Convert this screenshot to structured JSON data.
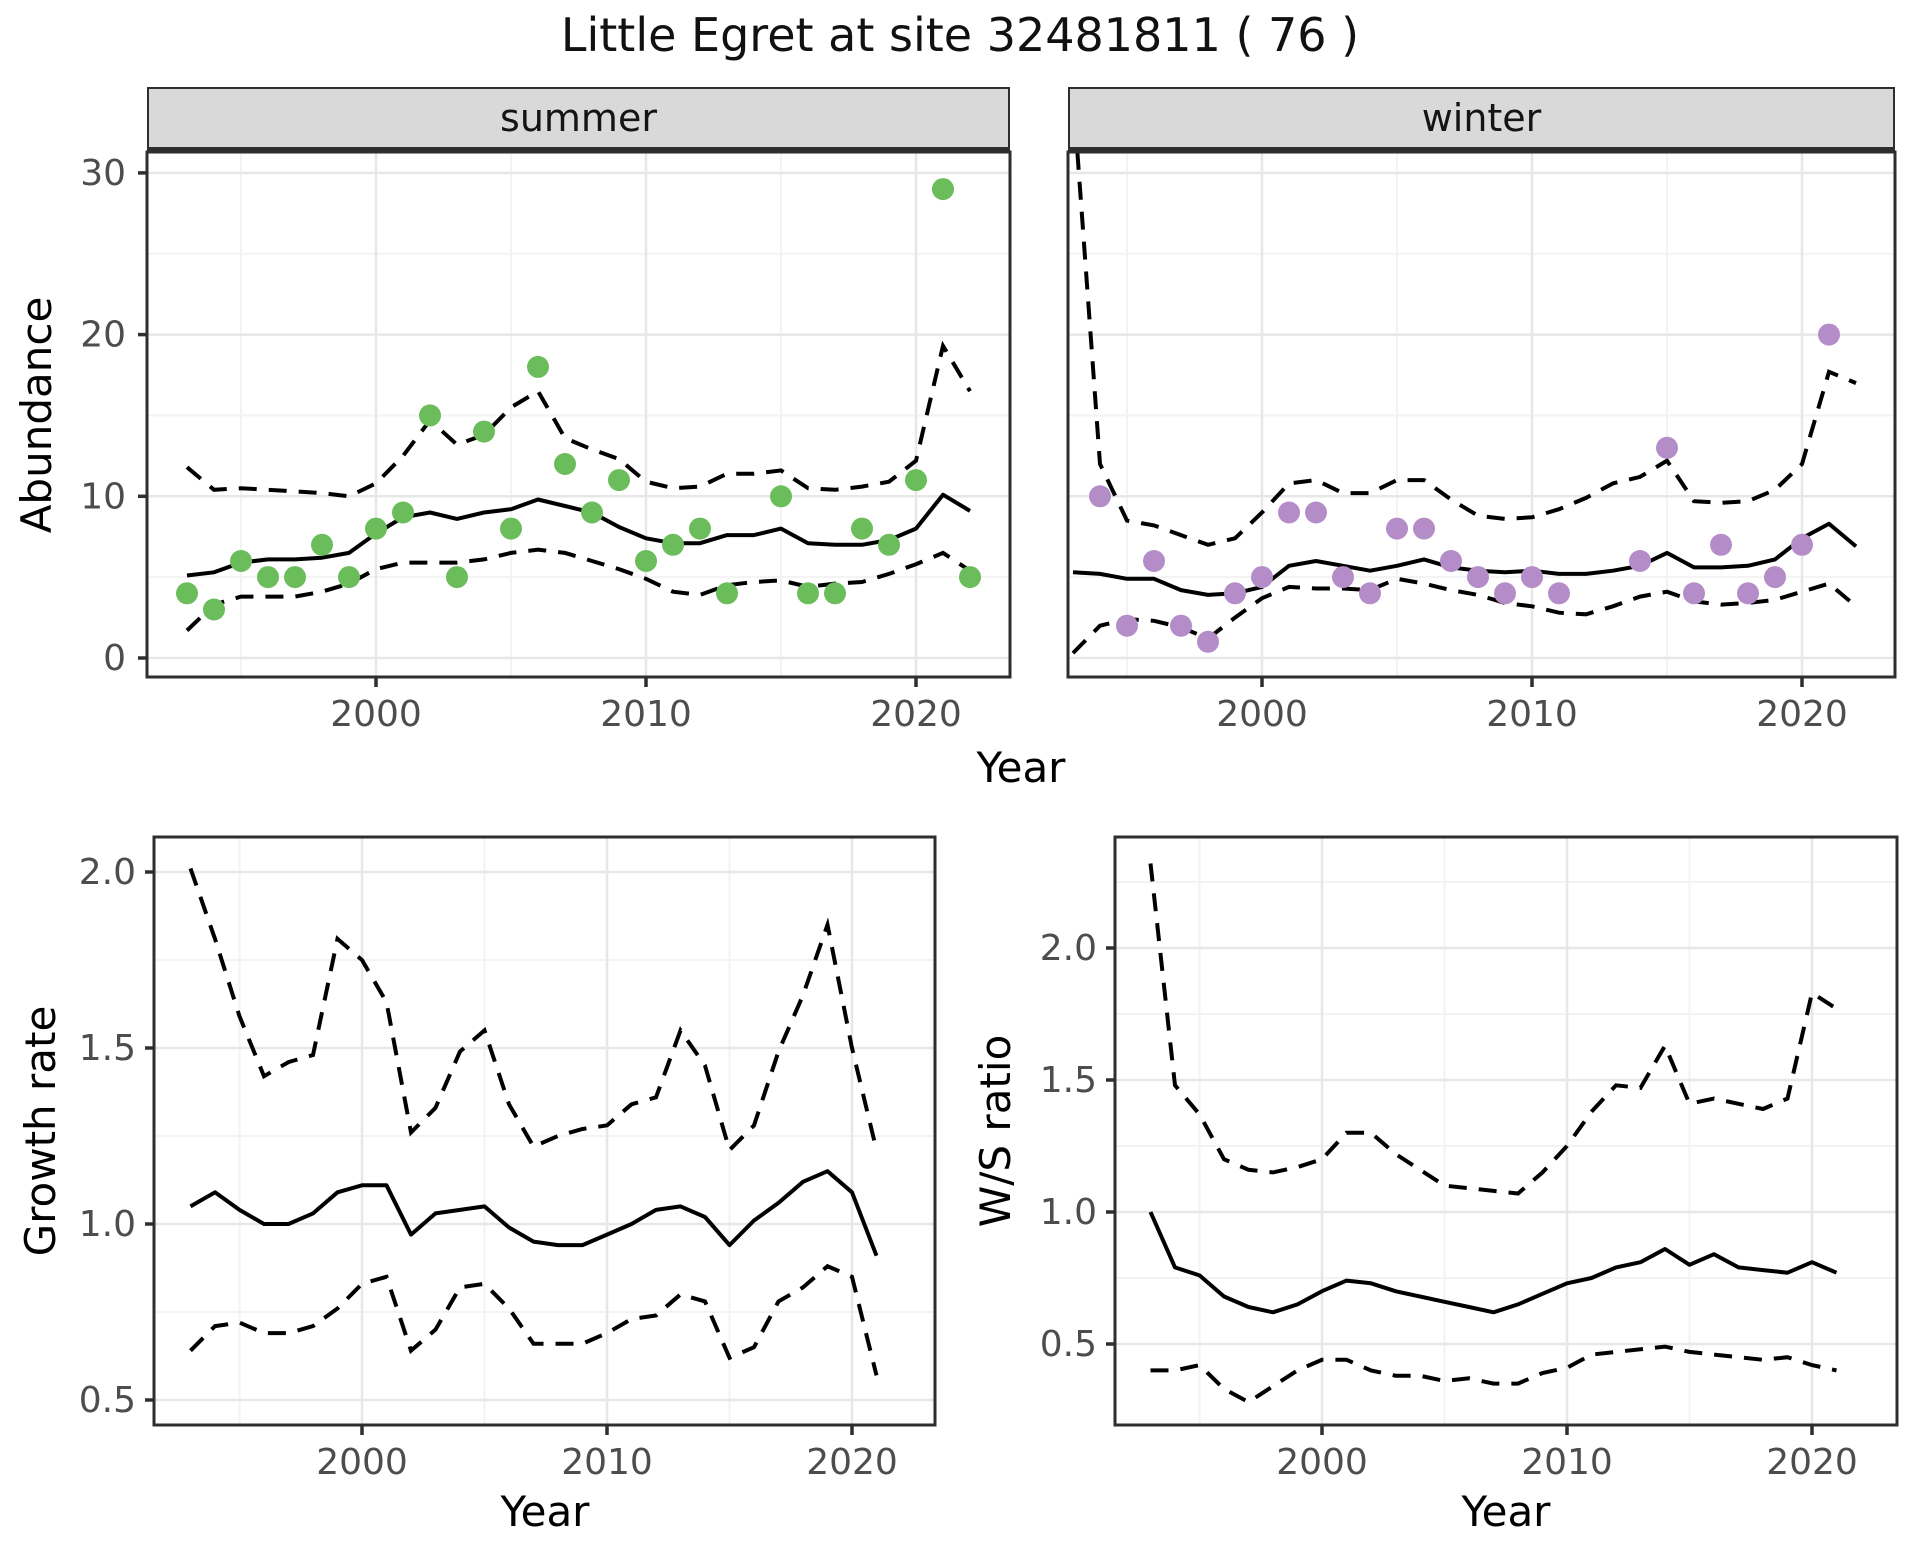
{
  "title": "Little Egret at site 32481811 ( 76 )",
  "facets": {
    "summer": "summer",
    "winter": "winter"
  },
  "axis_titles": {
    "x": "Year",
    "y_abundance": "Abundance",
    "y_growth": "Growth rate",
    "y_ws": "W/S ratio"
  },
  "colors": {
    "summer_point": "#6abd5a",
    "winter_point": "#b48cc8",
    "line": "#000000",
    "grid_major": "#e7e7e7",
    "grid_minor": "#f3f3f3",
    "strip_bg": "#d9d9d9",
    "panel_border": "#2e2e2e",
    "tick_text": "#4d4d4d"
  },
  "chart_data": [
    {
      "id": "abundance-summer",
      "type": "line+scatter",
      "facet_label": "summer",
      "xlabel": "Year",
      "ylabel": "Abundance",
      "xlim": [
        1991.5,
        2023.5
      ],
      "ylim": [
        -1.2,
        31.3
      ],
      "xticks": [
        2000,
        2010,
        2020
      ],
      "xtick_labels": [
        "2000",
        "2010",
        "2020"
      ],
      "xminor": [
        1995,
        2005,
        2015
      ],
      "yticks": [
        0,
        10,
        20,
        30
      ],
      "ytick_labels": [
        "0",
        "10",
        "20",
        "30"
      ],
      "yminor": [
        5,
        15,
        25
      ],
      "line_years_start": 1993,
      "series": [
        {
          "name": "mean",
          "style": "solid",
          "values": [
            5.1,
            5.3,
            5.9,
            6.1,
            6.1,
            6.2,
            6.5,
            7.7,
            8.7,
            9.0,
            8.6,
            9.0,
            9.2,
            9.8,
            9.4,
            9.0,
            8.1,
            7.4,
            7.1,
            7.1,
            7.6,
            7.6,
            8.0,
            7.1,
            7.0,
            7.0,
            7.3,
            8.0,
            10.1,
            9.1
          ]
        },
        {
          "name": "upper95",
          "style": "dashed",
          "values": [
            11.8,
            10.4,
            10.5,
            10.4,
            10.3,
            10.2,
            10.0,
            10.8,
            12.5,
            14.7,
            13.2,
            13.8,
            15.5,
            16.5,
            13.6,
            12.9,
            12.3,
            10.9,
            10.5,
            10.6,
            11.4,
            11.4,
            11.6,
            10.5,
            10.4,
            10.6,
            10.9,
            12.2,
            19.3,
            16.5
          ]
        },
        {
          "name": "lower95",
          "style": "dashed",
          "values": [
            1.7,
            3.3,
            3.8,
            3.8,
            3.8,
            4.1,
            4.6,
            5.5,
            5.9,
            5.9,
            5.9,
            6.1,
            6.5,
            6.7,
            6.5,
            6.0,
            5.5,
            4.9,
            4.1,
            3.9,
            4.5,
            4.7,
            4.8,
            4.4,
            4.6,
            4.7,
            5.2,
            5.8,
            6.5,
            5.4
          ]
        }
      ],
      "points": {
        "color_key": "summer_point",
        "x": [
          1993,
          1994,
          1995,
          1996,
          1997,
          1998,
          1999,
          2000,
          2001,
          2002,
          2003,
          2004,
          2005,
          2006,
          2007,
          2008,
          2009,
          2010,
          2011,
          2012,
          2013,
          2015,
          2016,
          2017,
          2018,
          2019,
          2020,
          2021,
          2022
        ],
        "y": [
          4,
          3,
          6,
          5,
          5,
          7,
          5,
          8,
          9,
          15,
          5,
          14,
          8,
          18,
          12,
          9,
          11,
          6,
          7,
          8,
          4,
          10,
          4,
          4,
          8,
          7,
          11,
          29,
          5
        ]
      }
    },
    {
      "id": "abundance-winter",
      "type": "line+scatter",
      "facet_label": "winter",
      "xlabel": "Year",
      "ylabel": "Abundance",
      "xlim": [
        1991.5,
        2023.5
      ],
      "ylim": [
        -1.2,
        31.3
      ],
      "xticks": [
        2000,
        2010,
        2020
      ],
      "xtick_labels": [
        "2000",
        "2010",
        "2020"
      ],
      "xminor": [
        1995,
        2005,
        2015
      ],
      "yticks": [
        0,
        10,
        20,
        30
      ],
      "ytick_labels": [
        "0",
        "10",
        "20",
        "30"
      ],
      "yminor": [
        5,
        15,
        25
      ],
      "line_years_start": 1993,
      "series": [
        {
          "name": "mean",
          "style": "solid",
          "values": [
            5.3,
            5.2,
            4.9,
            4.9,
            4.2,
            3.9,
            4.0,
            4.4,
            5.7,
            6.0,
            5.7,
            5.4,
            5.7,
            6.1,
            5.6,
            5.4,
            5.3,
            5.4,
            5.2,
            5.2,
            5.4,
            5.7,
            6.5,
            5.6,
            5.6,
            5.7,
            6.1,
            7.4,
            8.3,
            6.9
          ]
        },
        {
          "name": "upper95",
          "style": "dashed",
          "values": [
            35,
            12,
            8.5,
            8.2,
            7.6,
            7.0,
            7.4,
            9.0,
            10.8,
            11.0,
            10.2,
            10.2,
            11.0,
            11.0,
            9.8,
            8.8,
            8.6,
            8.7,
            9.2,
            9.9,
            10.8,
            11.2,
            12.2,
            9.7,
            9.6,
            9.7,
            10.4,
            12.0,
            17.7,
            17.0
          ]
        },
        {
          "name": "lower95",
          "style": "dashed",
          "values": [
            0.3,
            2.0,
            2.4,
            2.3,
            1.9,
            1.2,
            2.5,
            3.7,
            4.4,
            4.3,
            4.3,
            4.2,
            4.9,
            4.6,
            4.2,
            3.9,
            3.4,
            3.2,
            2.8,
            2.7,
            3.2,
            3.8,
            4.1,
            3.5,
            3.3,
            3.4,
            3.6,
            4.1,
            4.6,
            3.2
          ]
        }
      ],
      "points": {
        "color_key": "winter_point",
        "x": [
          1994,
          1995,
          1996,
          1997,
          1998,
          1999,
          2000,
          2001,
          2002,
          2003,
          2004,
          2005,
          2006,
          2007,
          2008,
          2009,
          2010,
          2011,
          2014,
          2015,
          2016,
          2017,
          2018,
          2019,
          2020,
          2021
        ],
        "y": [
          10,
          2,
          6,
          2,
          1,
          4,
          5,
          9,
          9,
          5,
          4,
          8,
          8,
          6,
          5,
          4,
          5,
          4,
          6,
          13,
          4,
          7,
          4,
          5,
          7,
          20
        ]
      }
    },
    {
      "id": "growth-rate",
      "type": "line",
      "facet_label": "",
      "xlabel": "Year",
      "ylabel": "Growth rate",
      "xlim": [
        1991.5,
        2023.4
      ],
      "ylim": [
        0.43,
        2.1
      ],
      "xticks": [
        2000,
        2010,
        2020
      ],
      "xtick_labels": [
        "2000",
        "2010",
        "2020"
      ],
      "xminor": [
        1995,
        2005,
        2015
      ],
      "yticks": [
        0.5,
        1.0,
        1.5,
        2.0
      ],
      "ytick_labels": [
        "0.5",
        "1.0",
        "1.5",
        "2.0"
      ],
      "yminor": [
        0.75,
        1.25,
        1.75
      ],
      "line_years_start": 1993,
      "series": [
        {
          "name": "mean",
          "style": "solid",
          "values": [
            1.05,
            1.09,
            1.04,
            1.0,
            1.0,
            1.03,
            1.09,
            1.11,
            1.11,
            0.97,
            1.03,
            1.04,
            1.05,
            0.99,
            0.95,
            0.94,
            0.94,
            0.97,
            1.0,
            1.04,
            1.05,
            1.02,
            0.94,
            1.01,
            1.06,
            1.12,
            1.15,
            1.09,
            0.91
          ]
        },
        {
          "name": "upper95",
          "style": "dashed",
          "values": [
            2.01,
            1.81,
            1.59,
            1.42,
            1.46,
            1.48,
            1.81,
            1.75,
            1.63,
            1.26,
            1.33,
            1.49,
            1.55,
            1.34,
            1.22,
            1.25,
            1.27,
            1.28,
            1.34,
            1.36,
            1.55,
            1.45,
            1.21,
            1.28,
            1.49,
            1.65,
            1.85,
            1.5,
            1.21
          ]
        },
        {
          "name": "lower95",
          "style": "dashed",
          "values": [
            0.64,
            0.71,
            0.72,
            0.69,
            0.69,
            0.71,
            0.76,
            0.83,
            0.85,
            0.64,
            0.7,
            0.82,
            0.83,
            0.76,
            0.66,
            0.66,
            0.66,
            0.69,
            0.73,
            0.74,
            0.8,
            0.78,
            0.62,
            0.65,
            0.78,
            0.82,
            0.88,
            0.85,
            0.57
          ]
        }
      ],
      "points": null
    },
    {
      "id": "ws-ratio",
      "type": "line",
      "facet_label": "",
      "xlabel": "Year",
      "ylabel": "W/S ratio",
      "xlim": [
        1991.5,
        2023.5
      ],
      "ylim": [
        0.19,
        2.42
      ],
      "xticks": [
        2000,
        2010,
        2020
      ],
      "xtick_labels": [
        "2000",
        "2010",
        "2020"
      ],
      "xminor": [
        1995,
        2005,
        2015
      ],
      "yticks": [
        0.5,
        1.0,
        1.5,
        2.0
      ],
      "ytick_labels": [
        "0.5",
        "1.0",
        "1.5",
        "2.0"
      ],
      "yminor": [
        0.75,
        1.25,
        1.75,
        2.25
      ],
      "line_years_start": 1993,
      "series": [
        {
          "name": "mean",
          "style": "solid",
          "values": [
            1.0,
            0.79,
            0.76,
            0.68,
            0.64,
            0.62,
            0.65,
            0.7,
            0.74,
            0.73,
            0.7,
            0.68,
            0.66,
            0.64,
            0.62,
            0.65,
            0.69,
            0.73,
            0.75,
            0.79,
            0.81,
            0.86,
            0.8,
            0.84,
            0.79,
            0.78,
            0.77,
            0.81,
            0.77
          ]
        },
        {
          "name": "upper95",
          "style": "dashed",
          "values": [
            2.32,
            1.48,
            1.37,
            1.2,
            1.16,
            1.15,
            1.17,
            1.2,
            1.3,
            1.3,
            1.22,
            1.16,
            1.1,
            1.09,
            1.08,
            1.07,
            1.15,
            1.25,
            1.38,
            1.48,
            1.47,
            1.63,
            1.41,
            1.43,
            1.41,
            1.39,
            1.43,
            1.83,
            1.77
          ]
        },
        {
          "name": "lower95",
          "style": "dashed",
          "values": [
            0.4,
            0.4,
            0.42,
            0.33,
            0.28,
            0.34,
            0.4,
            0.44,
            0.44,
            0.4,
            0.38,
            0.38,
            0.36,
            0.37,
            0.35,
            0.35,
            0.39,
            0.41,
            0.46,
            0.47,
            0.48,
            0.49,
            0.47,
            0.46,
            0.45,
            0.44,
            0.45,
            0.42,
            0.4
          ]
        }
      ],
      "points": null
    }
  ]
}
